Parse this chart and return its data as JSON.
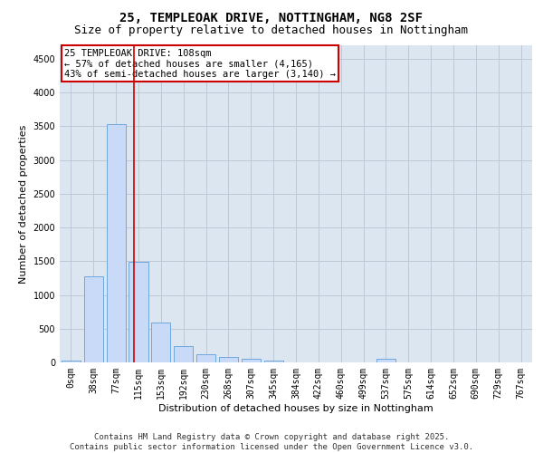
{
  "title_line1": "25, TEMPLEOAK DRIVE, NOTTINGHAM, NG8 2SF",
  "title_line2": "Size of property relative to detached houses in Nottingham",
  "xlabel": "Distribution of detached houses by size in Nottingham",
  "ylabel": "Number of detached properties",
  "bin_labels": [
    "0sqm",
    "38sqm",
    "77sqm",
    "115sqm",
    "153sqm",
    "192sqm",
    "230sqm",
    "268sqm",
    "307sqm",
    "345sqm",
    "384sqm",
    "422sqm",
    "460sqm",
    "499sqm",
    "537sqm",
    "575sqm",
    "614sqm",
    "652sqm",
    "690sqm",
    "729sqm",
    "767sqm"
  ],
  "bar_values": [
    30,
    1280,
    3530,
    1490,
    590,
    240,
    120,
    80,
    50,
    30,
    0,
    0,
    0,
    0,
    50,
    0,
    0,
    0,
    0,
    0,
    0
  ],
  "bar_color": "#c9daf8",
  "bar_edge_color": "#6fa8dc",
  "grid_color": "#c0c8d8",
  "background_color": "#dce6f1",
  "annotation_line1": "25 TEMPLEOAK DRIVE: 108sqm",
  "annotation_line2": "← 57% of detached houses are smaller (4,165)",
  "annotation_line3": "43% of semi-detached houses are larger (3,140) →",
  "annotation_box_color": "#ffffff",
  "annotation_box_edge_color": "#cc0000",
  "vline_color": "#cc0000",
  "ylim": [
    0,
    4700
  ],
  "yticks": [
    0,
    500,
    1000,
    1500,
    2000,
    2500,
    3000,
    3500,
    4000,
    4500
  ],
  "footer_line1": "Contains HM Land Registry data © Crown copyright and database right 2025.",
  "footer_line2": "Contains public sector information licensed under the Open Government Licence v3.0.",
  "title_fontsize": 10,
  "subtitle_fontsize": 9,
  "axis_label_fontsize": 8,
  "tick_fontsize": 7,
  "annotation_fontsize": 7.5,
  "footer_fontsize": 6.5
}
